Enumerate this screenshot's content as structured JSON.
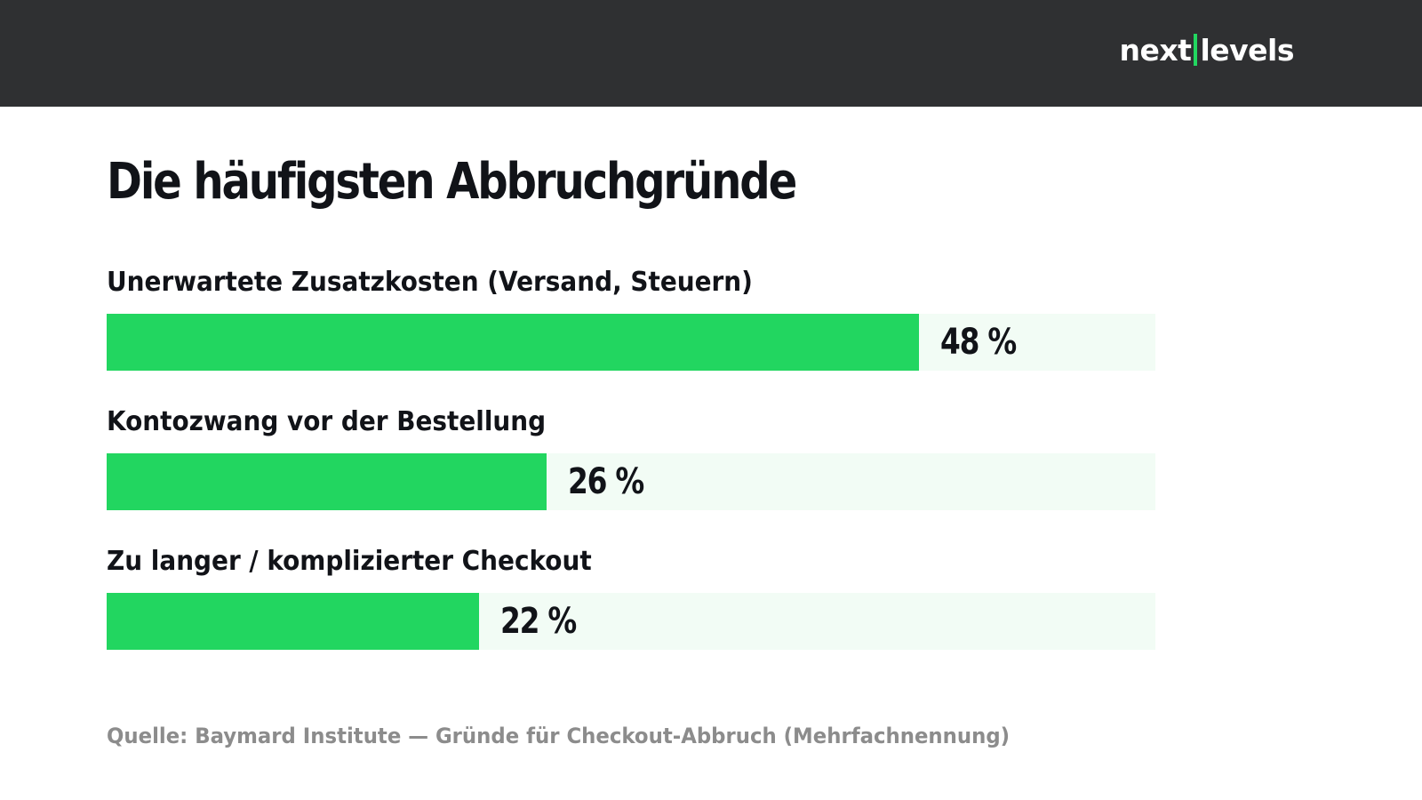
{
  "header": {
    "logo_left": "next",
    "logo_right": "levels"
  },
  "colors": {
    "header_bg": "#2f3032",
    "accent": "#22d660",
    "track": "#f2fcf5",
    "text": "#111318",
    "muted": "#8c8c8c"
  },
  "chart_data": {
    "type": "bar",
    "orientation": "horizontal",
    "title": "Die häufigsten Abbruchgründe",
    "categories": [
      "Unerwartete Zusatzkosten (Versand, Steuern)",
      "Kontozwang vor der Bestellung",
      "Zu langer / komplizierter Checkout"
    ],
    "values": [
      48,
      26,
      22
    ],
    "value_labels": [
      "48 %",
      "26 %",
      "22 %"
    ],
    "xlim": [
      0,
      62
    ],
    "unit": "%",
    "grid": false,
    "legend": "none"
  },
  "source": "Quelle: Baymard Institute — Gründe für Checkout-Abbruch (Mehrfachnennung)"
}
